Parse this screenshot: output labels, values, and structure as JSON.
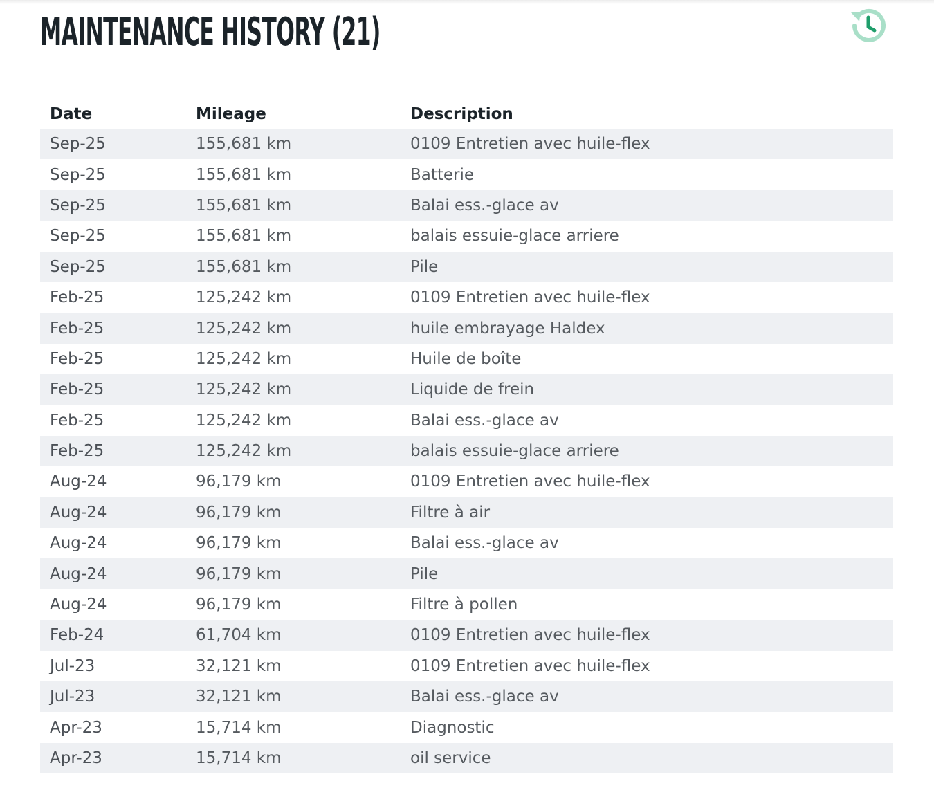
{
  "header": {
    "title": "MAINTENANCE HISTORY (21)",
    "icon": "history-icon",
    "icon_color": "#1f9e6b",
    "icon_light_color": "#a9dfc8"
  },
  "table": {
    "columns": [
      "Date",
      "Mileage",
      "Description"
    ],
    "rows": [
      {
        "date": "Sep-25",
        "mileage": "155,681 km",
        "description": "0109 Entretien avec huile-flex"
      },
      {
        "date": "Sep-25",
        "mileage": "155,681 km",
        "description": "Batterie"
      },
      {
        "date": "Sep-25",
        "mileage": "155,681 km",
        "description": "Balai ess.-glace av"
      },
      {
        "date": "Sep-25",
        "mileage": "155,681 km",
        "description": "balais essuie-glace arriere"
      },
      {
        "date": "Sep-25",
        "mileage": "155,681 km",
        "description": "Pile"
      },
      {
        "date": "Feb-25",
        "mileage": "125,242 km",
        "description": "0109 Entretien avec huile-flex"
      },
      {
        "date": "Feb-25",
        "mileage": "125,242 km",
        "description": "huile embrayage Haldex"
      },
      {
        "date": "Feb-25",
        "mileage": "125,242 km",
        "description": "Huile de boîte"
      },
      {
        "date": "Feb-25",
        "mileage": "125,242 km",
        "description": "Liquide de frein"
      },
      {
        "date": "Feb-25",
        "mileage": "125,242 km",
        "description": "Balai ess.-glace av"
      },
      {
        "date": "Feb-25",
        "mileage": "125,242 km",
        "description": "balais essuie-glace arriere"
      },
      {
        "date": "Aug-24",
        "mileage": "96,179 km",
        "description": "0109 Entretien avec huile-flex"
      },
      {
        "date": "Aug-24",
        "mileage": "96,179 km",
        "description": "Filtre à air"
      },
      {
        "date": "Aug-24",
        "mileage": "96,179 km",
        "description": "Balai ess.-glace av"
      },
      {
        "date": "Aug-24",
        "mileage": "96,179 km",
        "description": "Pile"
      },
      {
        "date": "Aug-24",
        "mileage": "96,179 km",
        "description": "Filtre à pollen"
      },
      {
        "date": "Feb-24",
        "mileage": "61,704 km",
        "description": "0109 Entretien avec huile-flex"
      },
      {
        "date": "Jul-23",
        "mileage": "32,121 km",
        "description": "0109 Entretien avec huile-flex"
      },
      {
        "date": "Jul-23",
        "mileage": "32,121 km",
        "description": "Balai ess.-glace av"
      },
      {
        "date": "Apr-23",
        "mileage": "15,714 km",
        "description": "Diagnostic"
      },
      {
        "date": "Apr-23",
        "mileage": "15,714 km",
        "description": "oil service"
      }
    ]
  }
}
